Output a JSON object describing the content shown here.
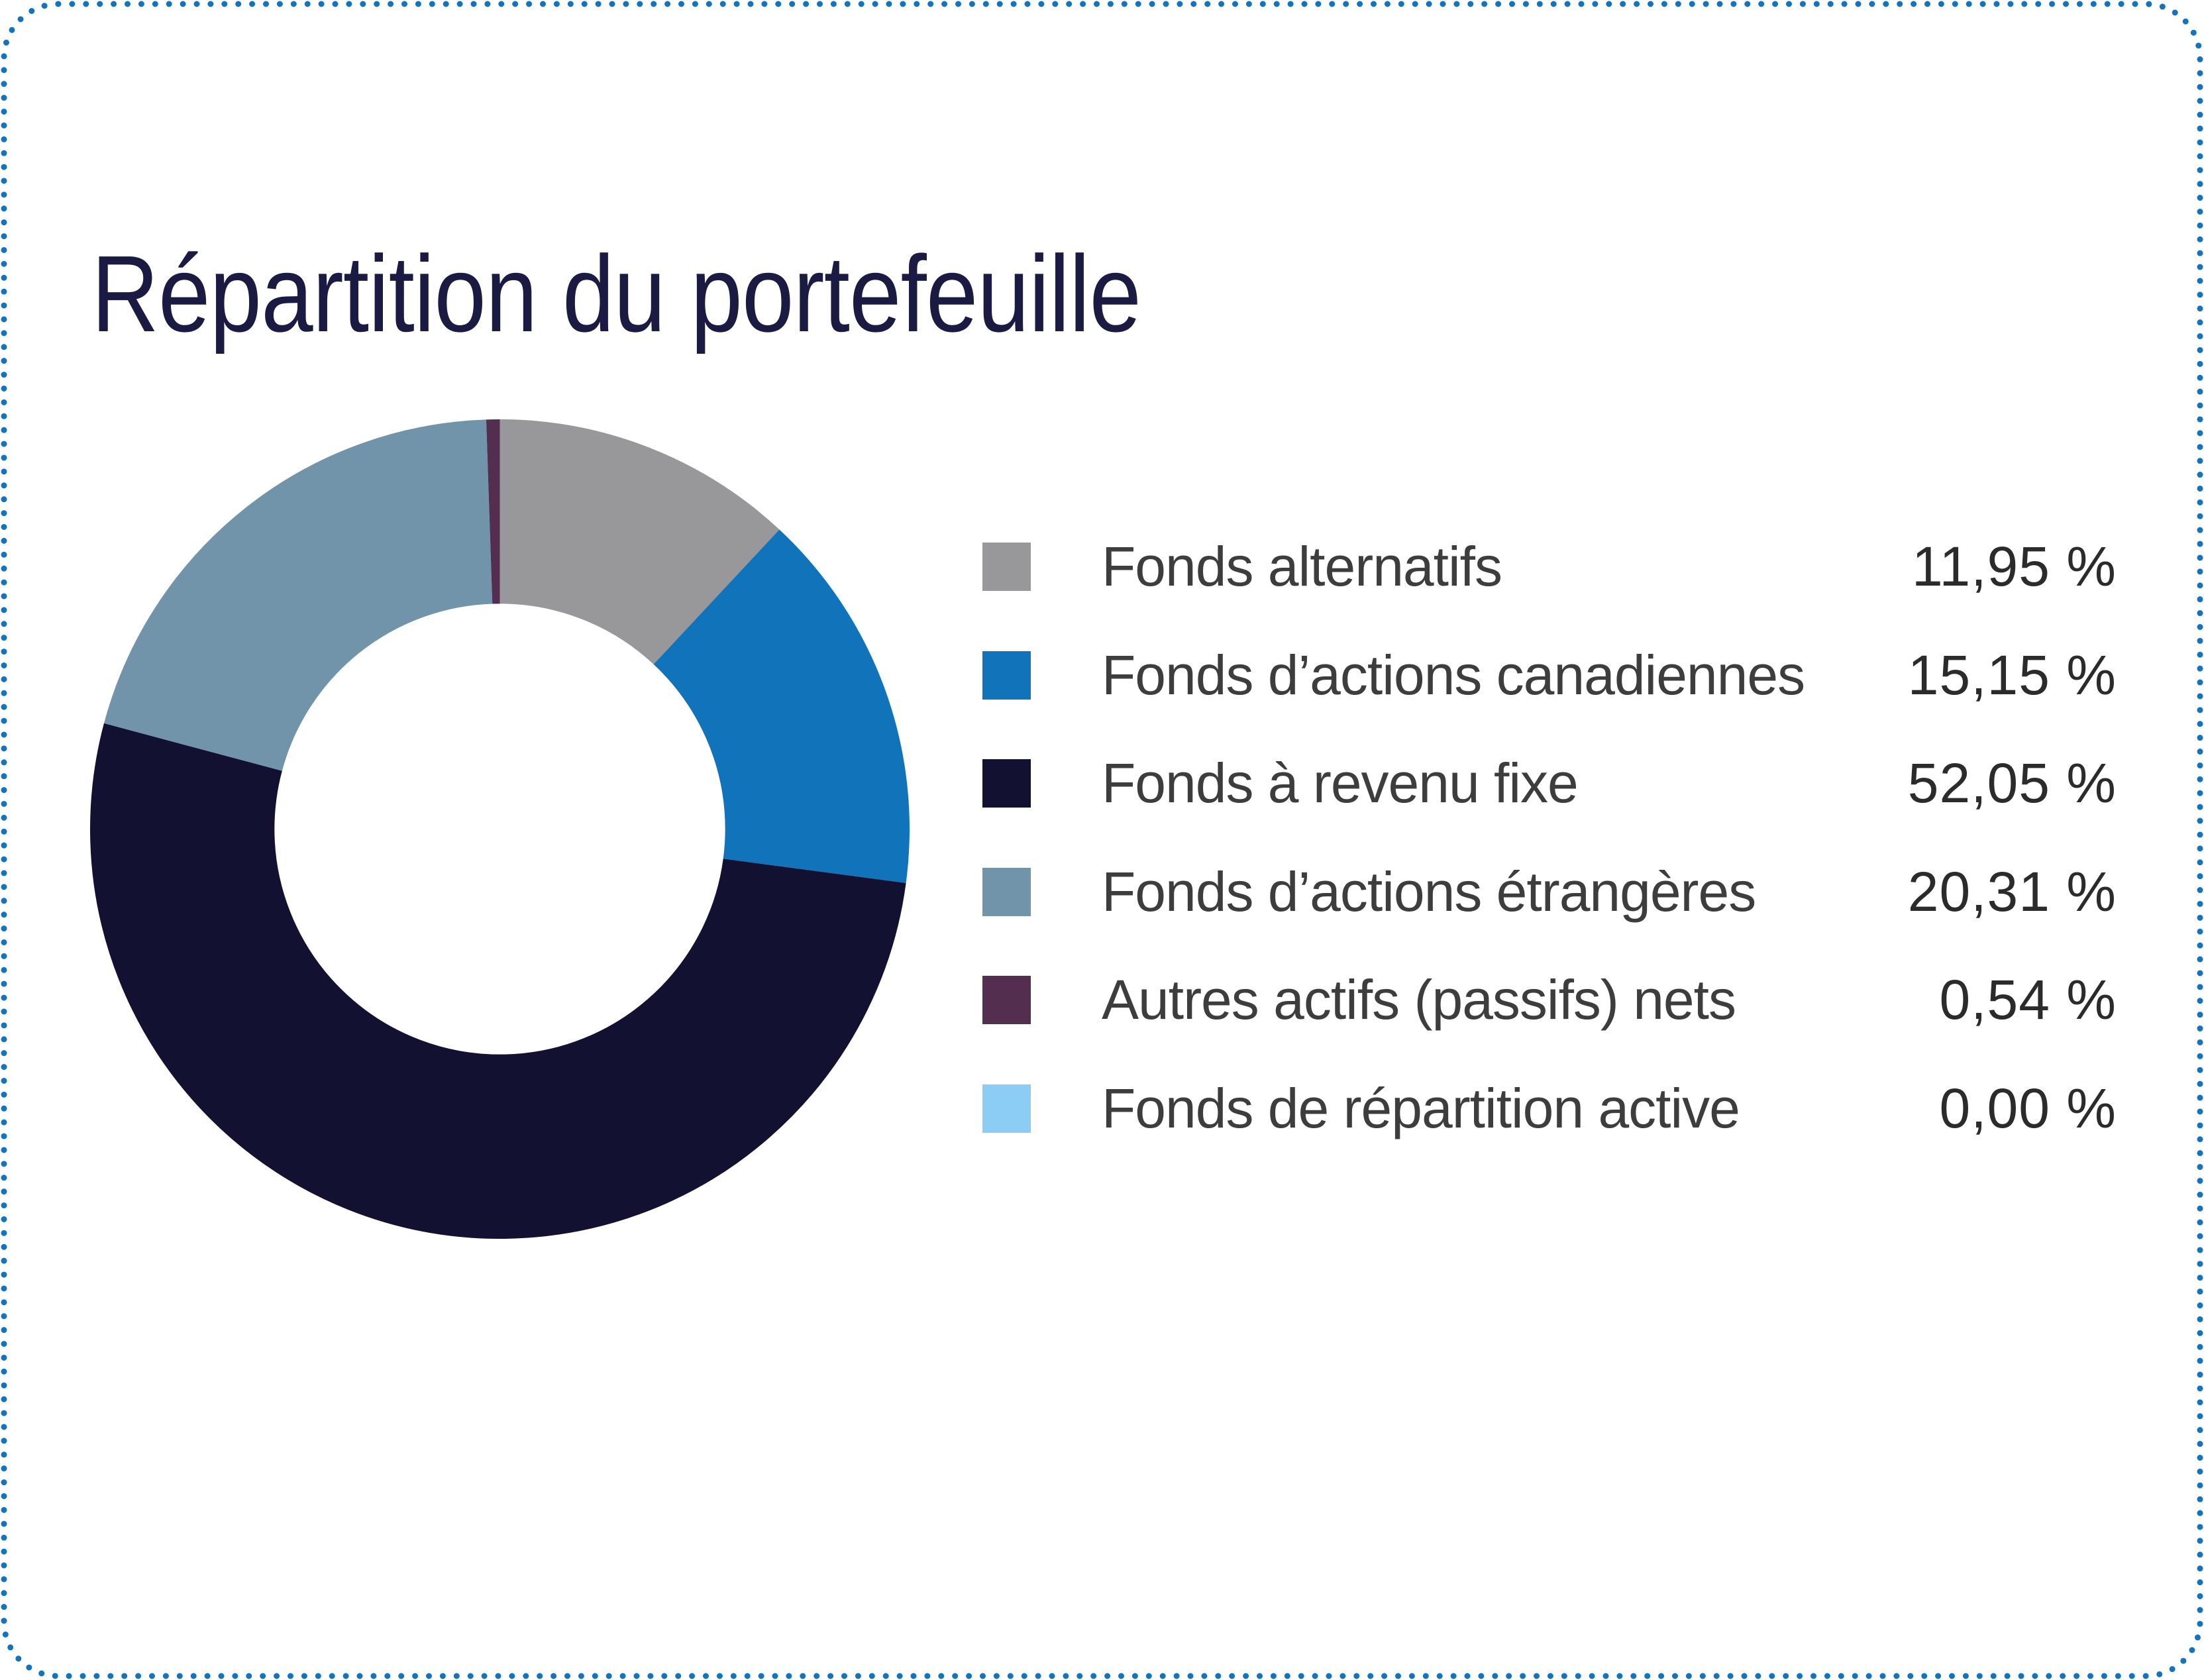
{
  "card": {
    "border_color": "#1473bd",
    "background_color": "#ffffff",
    "title_color": "#1b1a42"
  },
  "header": {
    "title": "Répartition du portefeuille"
  },
  "chart_data": {
    "type": "pie",
    "subtype": "donut",
    "title": "Répartition du portefeuille",
    "inner_radius_ratio": 0.55,
    "start_angle_deg": 0,
    "direction": "clockwise",
    "legend_position": "right",
    "series": [
      {
        "label": "Fonds alternatifs",
        "value": 11.95,
        "display": "11,95 %",
        "color": "#98989a"
      },
      {
        "label": "Fonds d’actions canadiennes",
        "value": 15.15,
        "display": "15,15 %",
        "color": "#1173ba"
      },
      {
        "label": "Fonds à revenu fixe",
        "value": 52.05,
        "display": "52,05 %",
        "color": "#131132"
      },
      {
        "label": "Fonds d’actions étrangères",
        "value": 20.31,
        "display": "20,31 %",
        "color": "#7294ab"
      },
      {
        "label": "Autres actifs (passifs) nets",
        "value": 0.54,
        "display": "0,54 %",
        "color": "#532e4e"
      },
      {
        "label": "Fonds de répartition active",
        "value": 0.0,
        "display": "0,00 %",
        "color": "#8bcdf4"
      }
    ]
  }
}
